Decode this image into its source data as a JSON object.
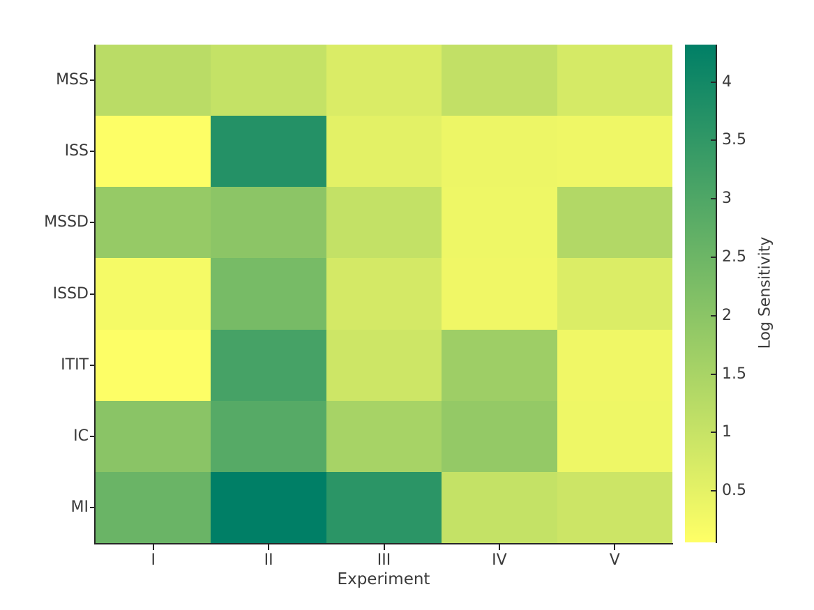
{
  "chart_data": {
    "type": "heatmap",
    "title": "",
    "xlabel": "Experiment",
    "ylabel": "",
    "x_categories": [
      "I",
      "II",
      "III",
      "IV",
      "V"
    ],
    "y_categories": [
      "MSS",
      "ISS",
      "MSSD",
      "ISSD",
      "ITIT",
      "IC",
      "MI"
    ],
    "series": [
      {
        "name": "MSS",
        "values": [
          1.21,
          1.04,
          0.68,
          1.08,
          0.76
        ]
      },
      {
        "name": "ISS",
        "values": [
          0.1,
          3.72,
          0.53,
          0.36,
          0.33
        ]
      },
      {
        "name": "MSSD",
        "values": [
          1.81,
          1.98,
          1.06,
          0.34,
          1.35
        ]
      },
      {
        "name": "ISSD",
        "values": [
          0.23,
          2.33,
          0.78,
          0.31,
          0.66
        ]
      },
      {
        "name": "ITIT",
        "values": [
          0.1,
          3.15,
          0.9,
          1.68,
          0.31
        ]
      },
      {
        "name": "IC",
        "values": [
          2.02,
          2.88,
          1.53,
          1.85,
          0.34
        ]
      },
      {
        "name": "MI",
        "values": [
          2.55,
          4.32,
          3.6,
          1.04,
          0.91
        ]
      }
    ],
    "colorbar": {
      "label": "Log Sensitivity",
      "tick_labels": [
        "4",
        "3.5",
        "3",
        "2.5",
        "2",
        "1.5",
        "1",
        "0.5"
      ],
      "tick_values": [
        4,
        3.5,
        3,
        2.5,
        2,
        1.5,
        1,
        0.5
      ],
      "vmin": 0.06,
      "vmax": 4.32,
      "cmap_name": "summer_r",
      "cmap_low": "#ffff66",
      "cmap_high": "#007f66"
    },
    "grid": false,
    "legend_position": null,
    "axis_color": "#262626",
    "text_color": "#3a3a3a",
    "background_color": "#ffffff"
  }
}
